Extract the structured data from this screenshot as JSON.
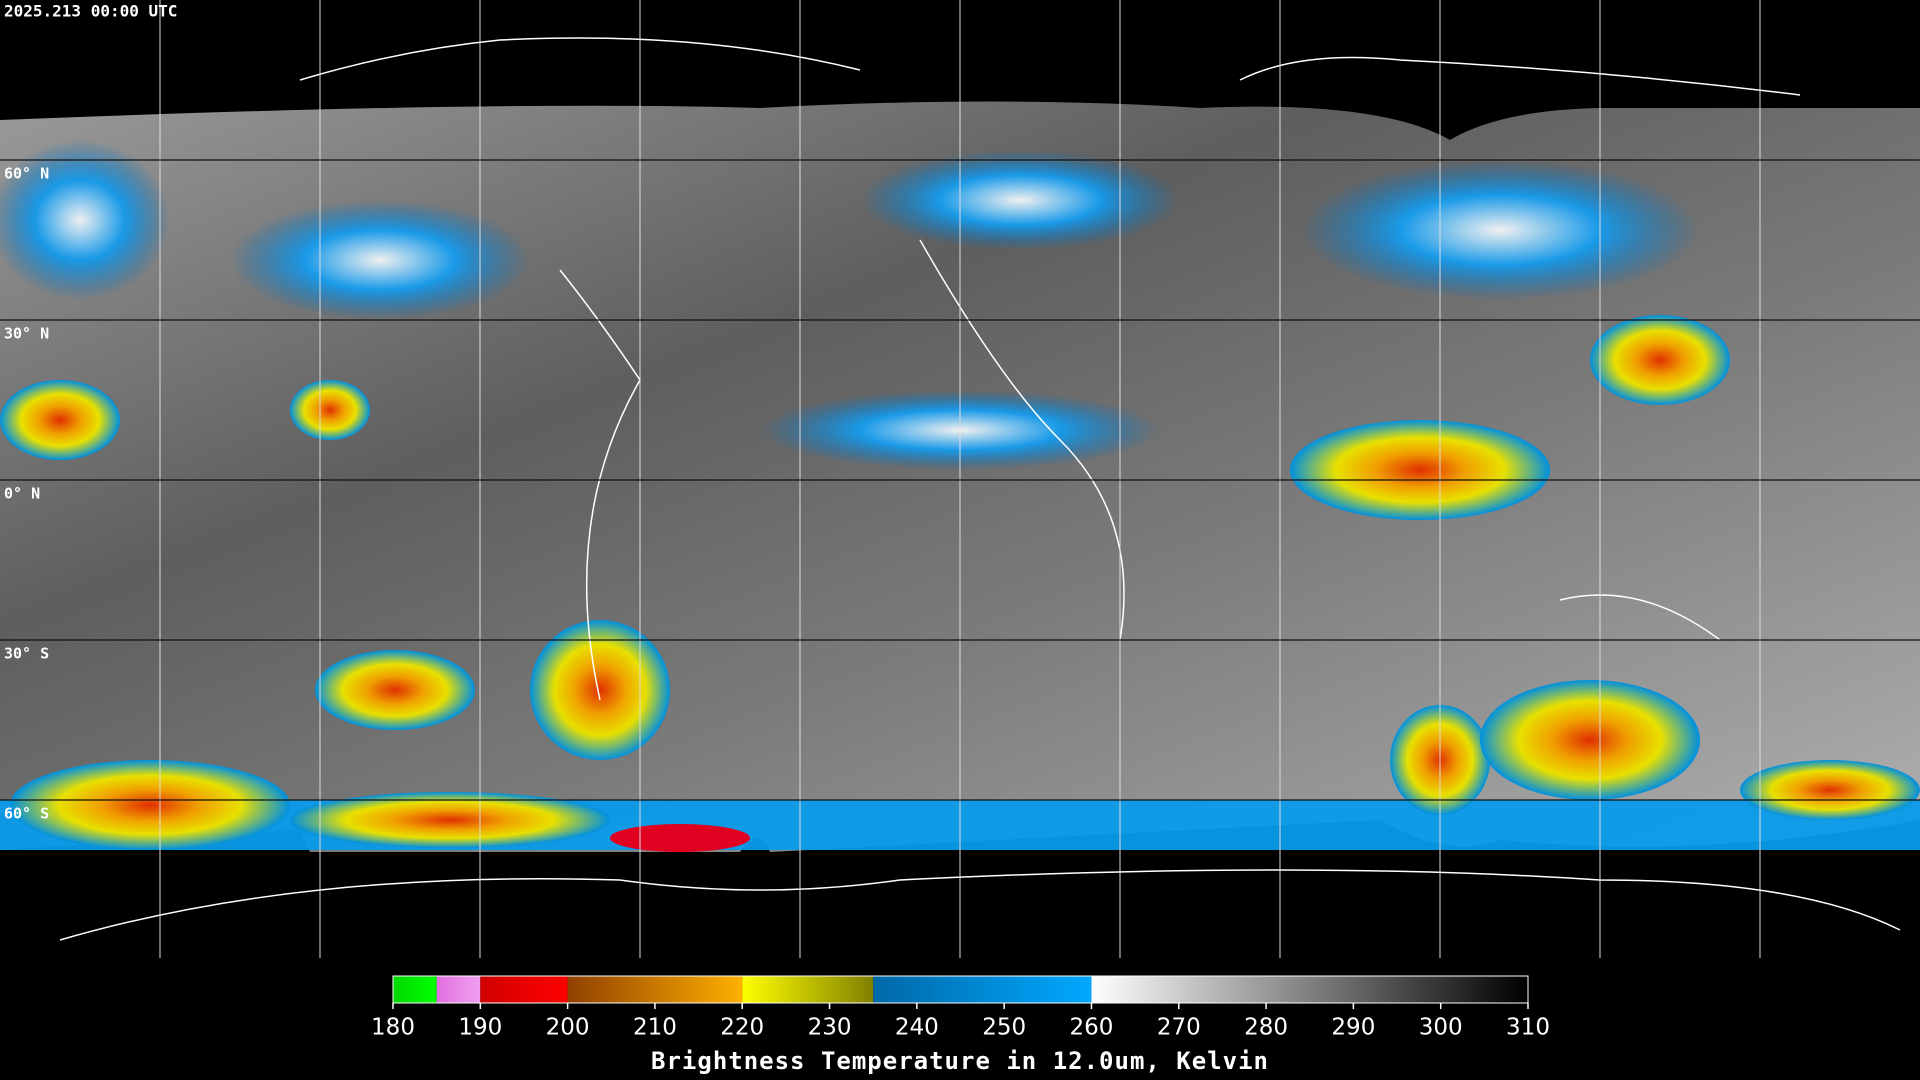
{
  "timestamp": "2025.213 00:00 UTC",
  "latitude_labels": [
    "60° N",
    "30° N",
    "0° N",
    "30° S",
    "60° S"
  ],
  "colorbar": {
    "title": "Brightness Temperature in 12.0um, Kelvin",
    "range": [
      180,
      310
    ],
    "ticks": [
      180,
      190,
      200,
      210,
      220,
      230,
      240,
      250,
      260,
      270,
      280,
      290,
      300,
      310
    ],
    "segments": [
      {
        "from": 180,
        "to": 185,
        "colors": [
          "#00d800",
          "#00ff00"
        ]
      },
      {
        "from": 185,
        "to": 190,
        "colors": [
          "#e070e0",
          "#f0a0f0"
        ]
      },
      {
        "from": 190,
        "to": 200,
        "colors": [
          "#d00000",
          "#ff0000"
        ]
      },
      {
        "from": 200,
        "to": 220,
        "colors": [
          "#904000",
          "#ffb000"
        ]
      },
      {
        "from": 220,
        "to": 235,
        "colors": [
          "#ffff00",
          "#808000"
        ]
      },
      {
        "from": 235,
        "to": 260,
        "colors": [
          "#0068a8",
          "#00a8ff"
        ]
      },
      {
        "from": 260,
        "to": 310,
        "colors": [
          "#ffffff",
          "#000000"
        ]
      }
    ]
  }
}
